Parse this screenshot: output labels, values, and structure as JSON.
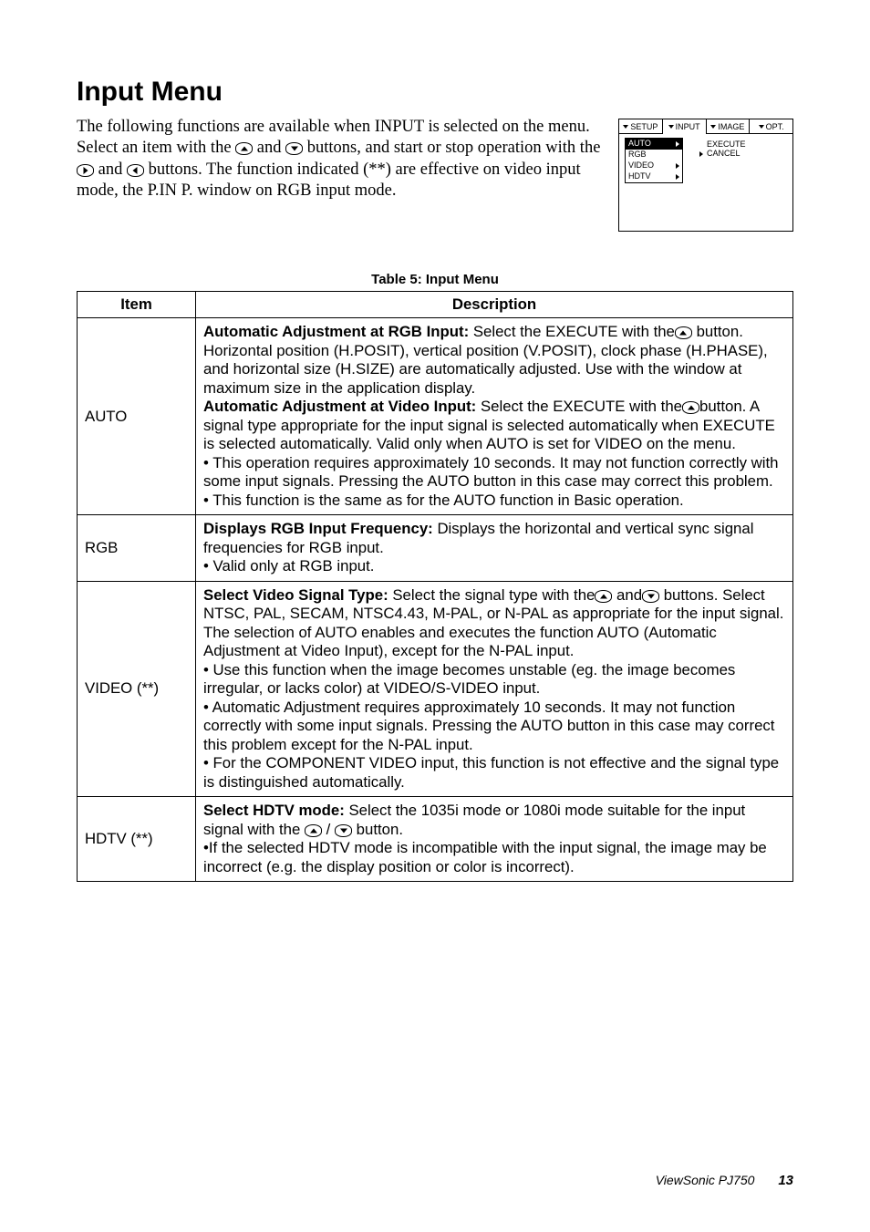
{
  "heading": "Input Menu",
  "intro_parts": {
    "a": "The following functions are available when INPUT is selected on the menu. Select an item with the",
    "b": "and",
    "c": "buttons, and start or stop operation with the",
    "d": "and",
    "e": "buttons. The function indicated (**) are effective on video input mode, the P.IN P. window on RGB input mode."
  },
  "osd": {
    "tabs": [
      "SETUP",
      "INPUT",
      "IMAGE",
      "OPT."
    ],
    "active_tab": 1,
    "left_items": [
      "AUTO",
      "RGB",
      "VIDEO",
      "HDTV"
    ],
    "right_items": [
      "EXECUTE",
      "CANCEL"
    ]
  },
  "table": {
    "caption": "Table 5: Input Menu",
    "headers": [
      "Item",
      "Description"
    ],
    "rows": [
      {
        "item": "AUTO",
        "desc": {
          "b1": "Automatic Adjustment at RGB Input: ",
          "t1": "Select the EXECUTE with the",
          "t1b": " button. Horizontal position (H.POSIT), vertical position (V.POSIT), clock phase (H.PHASE), and horizontal size (H.SIZE) are automatically adjusted. Use with the window at maximum size in the application display.",
          "b2": "Automatic Adjustment at Video Input: ",
          "t2": "Select the EXECUTE with the",
          "t2b": "button. A signal type appropriate for the input signal is selected automatically when EXECUTE is selected automatically. Valid only when AUTO is set for VIDEO on the menu.",
          "t3": "• This operation requires approximately 10 seconds. It may not function correctly with some input signals. Pressing the AUTO button in this case may correct this problem.",
          "t4": "• This function is the same as for the AUTO function in Basic operation."
        }
      },
      {
        "item": "RGB",
        "desc": {
          "b1": "Displays RGB Input Frequency: ",
          "t1": "Displays the horizontal and vertical sync signal frequencies for RGB input.",
          "t2": "• Valid only at RGB input."
        }
      },
      {
        "item": "VIDEO (**)",
        "desc": {
          "b1": "Select Video Signal Type: ",
          "t1": "Select the signal type with the",
          "t1m": " and",
          "t1b": " buttons. Select NTSC, PAL, SECAM, NTSC4.43, M-PAL, or N-PAL as appropriate for the input signal. The selection of AUTO enables and executes the function AUTO (Automatic Adjustment at Video Input), except for the N-PAL input.",
          "t2": "• Use this function when the image becomes unstable (eg. the image becomes irregular, or lacks color) at VIDEO/S-VIDEO input.",
          "t3": "• Automatic Adjustment requires approximately 10 seconds. It may not function correctly with some input signals. Pressing the AUTO button in this case may correct this problem except for the N-PAL input.",
          "t4": "• For the COMPONENT VIDEO input, this function is not effective and the signal type is distinguished automatically."
        }
      },
      {
        "item": "HDTV (**)",
        "desc": {
          "b1": "Select HDTV mode: ",
          "t1": "Select the 1035i mode or 1080i mode suitable for the input signal with the ",
          "t1m": " / ",
          "t1b": " button.",
          "t2": "•If the selected HDTV mode is incompatible with the input signal, the image may be incorrect (e.g. the display position or color is incorrect)."
        }
      }
    ]
  },
  "footer": {
    "product": "ViewSonic  PJ750",
    "page": "13"
  }
}
